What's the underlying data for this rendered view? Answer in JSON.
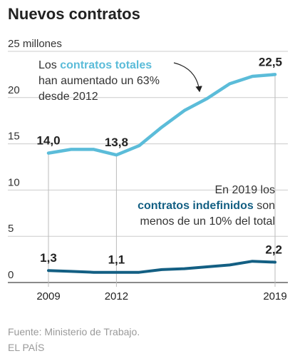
{
  "chart_data": {
    "type": "line",
    "title": "Nuevos contratos",
    "y_unit_label": "25 millones",
    "ylim": [
      0,
      25
    ],
    "y_ticks": [
      0,
      5,
      10,
      15,
      20
    ],
    "x": [
      2009,
      2010,
      2011,
      2012,
      2013,
      2014,
      2015,
      2016,
      2017,
      2018,
      2019
    ],
    "x_tick_labels": [
      "2009",
      "2012",
      "2019"
    ],
    "grid": true,
    "series": [
      {
        "name": "contratos totales",
        "color": "#5bbcd9",
        "values": [
          14.0,
          14.4,
          14.4,
          13.8,
          14.8,
          16.8,
          18.6,
          19.9,
          21.5,
          22.3,
          22.5
        ]
      },
      {
        "name": "contratos indefinidos",
        "color": "#135f83",
        "values": [
          1.3,
          1.2,
          1.1,
          1.1,
          1.1,
          1.4,
          1.5,
          1.7,
          1.9,
          2.3,
          2.2
        ]
      }
    ],
    "data_labels": [
      {
        "series": 0,
        "index": 0,
        "text": "14,0"
      },
      {
        "series": 0,
        "index": 3,
        "text": "13,8"
      },
      {
        "series": 0,
        "index": 10,
        "text": "22,5"
      },
      {
        "series": 1,
        "index": 0,
        "text": "1,3"
      },
      {
        "series": 1,
        "index": 3,
        "text": "1,1"
      },
      {
        "series": 1,
        "index": 10,
        "text": "2,2"
      }
    ],
    "annotations": [
      {
        "lines": [
          [
            {
              "text": "Los "
            },
            {
              "text": "contratos totales",
              "bold": true,
              "color": "#5bbcd9"
            }
          ],
          [
            {
              "text": "han aumentado un 63%"
            }
          ],
          [
            {
              "text": "desde 2012"
            }
          ]
        ]
      },
      {
        "lines": [
          [
            {
              "text": "En 2019 los"
            }
          ],
          [
            {
              "text": "contratos indefinidos",
              "bold": true,
              "color": "#135f83"
            },
            {
              "text": " son"
            }
          ],
          [
            {
              "text": "menos de un 10% del total"
            }
          ]
        ]
      }
    ],
    "source": "Fuente: Ministerio de Trabajo.",
    "credit": "EL PAÍS"
  }
}
